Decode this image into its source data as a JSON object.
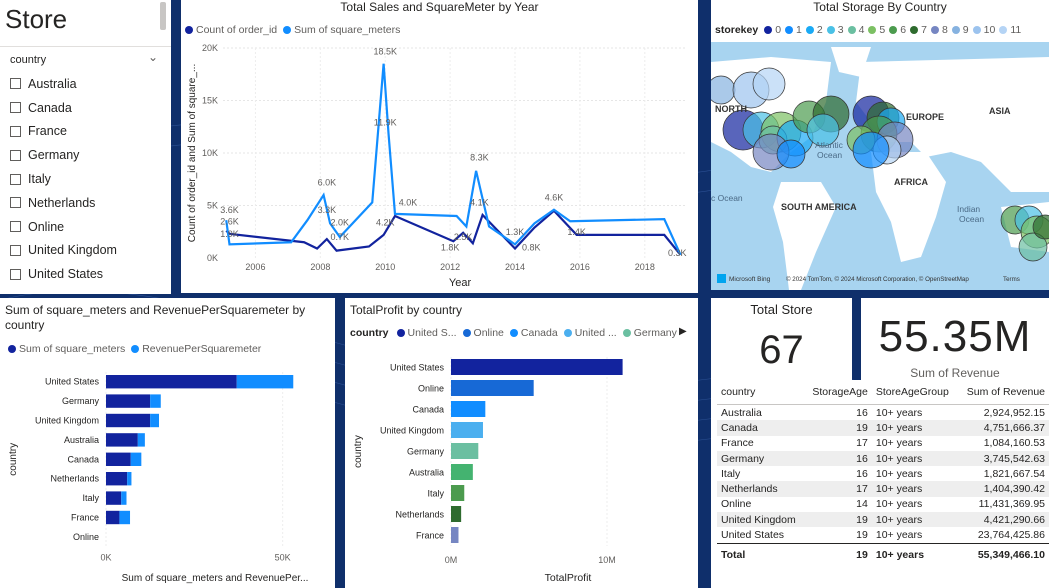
{
  "store_slicer": {
    "title": "Store",
    "header": "country",
    "items": [
      "Australia",
      "Canada",
      "France",
      "Germany",
      "Italy",
      "Netherlands",
      "Online",
      "United Kingdom",
      "United States"
    ]
  },
  "sales_chart": {
    "title": "Total Sales and SquareMeter by Year",
    "legend": [
      "Count of order_id",
      "Sum of square_meters"
    ],
    "xlabel": "Year",
    "ylabel": "Count of order_id and Sum of square_...",
    "yticks": [
      "0K",
      "5K",
      "10K",
      "15K",
      "20K"
    ],
    "xticks": [
      "2006",
      "2008",
      "2010",
      "2012",
      "2014",
      "2016",
      "2018"
    ],
    "labels": [
      "3.6K",
      "2.6K",
      "1.9K",
      "6.0K",
      "3.3K",
      "2.0K",
      "0.7K",
      "18.5K",
      "11.9K",
      "4.2K",
      "4.0K",
      "1.8K",
      "2.5K",
      "8.3K",
      "4.1K",
      "1.3K",
      "0.8K",
      "4.6K",
      "1.4K",
      "0.3K"
    ]
  },
  "map": {
    "title": "Total Storage By Country",
    "legend_label": "storekey",
    "legend_items": [
      "0",
      "1",
      "2",
      "3",
      "4",
      "5",
      "6",
      "7",
      "8",
      "9",
      "10",
      "11"
    ],
    "legend_colors": [
      "#12239e",
      "#118dff",
      "#1aaaf5",
      "#4ac1e6",
      "#6bbfa1",
      "#7cc063",
      "#4c9b4e",
      "#2e6b2e",
      "#7686c2",
      "#86b2e0",
      "#9cc3ee",
      "#b5d4f5"
    ],
    "regions": [
      "NORTH",
      "Atlantic",
      "Ocean",
      "EUROPE",
      "ASIA",
      "AFRICA",
      "SOUTH AMERICA",
      "Indian",
      "Ocean",
      "c Ocean"
    ],
    "attribution": "Microsoft Bing",
    "copyright": "© 2024 TomTom, © 2024 Microsoft Corporation, © OpenStreetMap",
    "terms": "Terms"
  },
  "sqm_chart": {
    "title": "Sum of square_meters and RevenuePerSquaremeter by country",
    "legend": [
      "Sum of square_meters",
      "RevenuePerSquaremeter"
    ],
    "ylabel": "country",
    "xlabel": "Sum of square_meters and RevenuePer...",
    "xticks": [
      "0K",
      "50K"
    ]
  },
  "profit_chart": {
    "title": "TotalProfit by country",
    "legend_label": "country",
    "legend_items": [
      "United S...",
      "Online",
      "Canada",
      "United ...",
      "Germany"
    ],
    "ylabel": "country",
    "xlabel": "TotalProfit",
    "xticks": [
      "0M",
      "10M"
    ]
  },
  "kpi_store": {
    "label": "Total Store",
    "value": "67"
  },
  "kpi_revenue": {
    "value": "55.35M",
    "label": "Sum of Revenue"
  },
  "revenue_table": {
    "headers": [
      "country",
      "StorageAge",
      "StoreAgeGroup",
      "Sum of Revenue"
    ],
    "rows": [
      [
        "Australia",
        "16",
        "10+ years",
        "2,924,952.15"
      ],
      [
        "Canada",
        "19",
        "10+ years",
        "4,751,666.37"
      ],
      [
        "France",
        "17",
        "10+ years",
        "1,084,160.53"
      ],
      [
        "Germany",
        "16",
        "10+ years",
        "3,745,542.63"
      ],
      [
        "Italy",
        "16",
        "10+ years",
        "1,821,667.54"
      ],
      [
        "Netherlands",
        "17",
        "10+ years",
        "1,404,390.42"
      ],
      [
        "Online",
        "14",
        "10+ years",
        "11,431,369.95"
      ],
      [
        "United Kingdom",
        "19",
        "10+ years",
        "4,421,290.66"
      ],
      [
        "United States",
        "19",
        "10+ years",
        "23,764,425.86"
      ]
    ],
    "total": [
      "Total",
      "19",
      "10+ years",
      "55,349,466.10"
    ]
  },
  "chart_data": [
    {
      "type": "line",
      "title": "Total Sales and SquareMeter by Year",
      "xlabel": "Year",
      "ylabel": "Count of order_id and Sum of square_...",
      "xlim": [
        2005,
        2019.3
      ],
      "ylim": [
        0,
        20000
      ],
      "series": [
        {
          "name": "Count of order_id",
          "color": "#12239e",
          "x": [
            2005.1,
            2005.2,
            2007.5,
            2007.9,
            2008.2,
            2008.5,
            2009.5,
            2009.95,
            2010.3,
            2012.1,
            2012.4,
            2012.7,
            2013,
            2014,
            2014.6,
            2015.2,
            2015.9,
            2018.6,
            2019.1
          ],
          "y": [
            2600,
            2300,
            1500,
            900,
            1800,
            700,
            1100,
            2200,
            4000,
            1600,
            2400,
            1400,
            4100,
            900,
            2900,
            4500,
            2200,
            2200,
            300
          ]
        },
        {
          "name": "Sum of square_meters",
          "color": "#118dff",
          "x": [
            2005.1,
            2005.2,
            2007.1,
            2007.6,
            2008.1,
            2008.3,
            2008.6,
            2009.6,
            2009.95,
            2010.1,
            2010.3,
            2012.2,
            2012.5,
            2012.8,
            2013.2,
            2014,
            2014.6,
            2015.2,
            2015.7,
            2018.6,
            2019.1
          ],
          "y": [
            3600,
            1300,
            1500,
            3600,
            6000,
            3300,
            2000,
            5300,
            18500,
            11900,
            4200,
            4000,
            3000,
            8300,
            3000,
            1300,
            3300,
            4600,
            3500,
            3700,
            300
          ]
        }
      ],
      "data_labels": [
        {
          "text": "3.6K",
          "x": 2005.2,
          "y": 4300
        },
        {
          "text": "2.6K",
          "x": 2005.2,
          "y": 3200
        },
        {
          "text": "1.9K",
          "x": 2005.2,
          "y": 2000
        },
        {
          "text": "6.0K",
          "x": 2008.2,
          "y": 6900
        },
        {
          "text": "3.3K",
          "x": 2008.2,
          "y": 4300
        },
        {
          "text": "2.0K",
          "x": 2008.6,
          "y": 3100
        },
        {
          "text": "0.7K",
          "x": 2008.6,
          "y": 1700
        },
        {
          "text": "18.5K",
          "x": 2010,
          "y": 19400
        },
        {
          "text": "11.9K",
          "x": 2010,
          "y": 12600
        },
        {
          "text": "4.2K",
          "x": 2010,
          "y": 3100
        },
        {
          "text": "4.0K",
          "x": 2010.7,
          "y": 5000
        },
        {
          "text": "1.8K",
          "x": 2012,
          "y": 700
        },
        {
          "text": "2.5K",
          "x": 2012.4,
          "y": 1700
        },
        {
          "text": "8.3K",
          "x": 2012.9,
          "y": 9300
        },
        {
          "text": "4.1K",
          "x": 2012.9,
          "y": 5000
        },
        {
          "text": "1.3K",
          "x": 2014,
          "y": 2200
        },
        {
          "text": "0.8K",
          "x": 2014.5,
          "y": 700
        },
        {
          "text": "4.6K",
          "x": 2015.2,
          "y": 5500
        },
        {
          "text": "1.4K",
          "x": 2015.9,
          "y": 2200
        },
        {
          "text": "0.3K",
          "x": 2019,
          "y": 200
        }
      ]
    },
    {
      "type": "bar",
      "title": "Sum of square_meters and RevenuePerSquaremeter by country",
      "orientation": "horizontal",
      "stacked": true,
      "categories": [
        "United States",
        "Germany",
        "United Kingdom",
        "Australia",
        "Canada",
        "Netherlands",
        "Italy",
        "France",
        "Online"
      ],
      "xlim": [
        0,
        60000
      ],
      "series": [
        {
          "name": "Sum of square_meters",
          "color": "#12239e",
          "values": [
            37000,
            12500,
            12500,
            9000,
            7000,
            6000,
            4300,
            3800,
            0
          ]
        },
        {
          "name": "RevenuePerSquaremeter",
          "color": "#118dff",
          "values": [
            16000,
            3000,
            2500,
            2000,
            3000,
            1200,
            1500,
            3000,
            0
          ]
        }
      ]
    },
    {
      "type": "bar",
      "title": "TotalProfit by country",
      "orientation": "horizontal",
      "categories": [
        "United States",
        "Online",
        "Canada",
        "United Kingdom",
        "Germany",
        "Australia",
        "Italy",
        "Netherlands",
        "France"
      ],
      "xlim": [
        0,
        15000000
      ],
      "values": [
        11000000,
        5300000,
        2200000,
        2050000,
        1750000,
        1400000,
        850000,
        650000,
        480000
      ],
      "colors": [
        "#12239e",
        "#1769d6",
        "#118dff",
        "#4bafef",
        "#6bbfa1",
        "#44b370",
        "#4c9b4e",
        "#2e6b2e",
        "#7686c2"
      ]
    }
  ]
}
